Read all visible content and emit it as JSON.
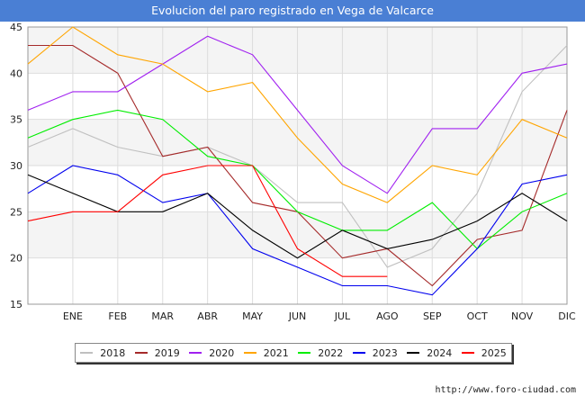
{
  "chart_data": {
    "type": "line",
    "title": "Evolucion del paro registrado en Vega de Valcarce",
    "categories": [
      "",
      "ENE",
      "FEB",
      "MAR",
      "ABR",
      "MAY",
      "JUN",
      "JUL",
      "AGO",
      "SEP",
      "OCT",
      "NOV",
      "DIC"
    ],
    "ylim": [
      15,
      45
    ],
    "yticks": [
      15,
      20,
      25,
      30,
      35,
      40,
      45
    ],
    "grid": true,
    "legend_position": "bottom",
    "series": [
      {
        "name": "2018",
        "color": "#c0c0c0",
        "values": [
          32,
          34,
          32,
          31,
          32,
          30,
          26,
          26,
          19,
          21,
          27,
          38,
          43
        ]
      },
      {
        "name": "2019",
        "color": "#a52a2a",
        "values": [
          43,
          43,
          40,
          31,
          32,
          26,
          25,
          20,
          21,
          17,
          22,
          23,
          36
        ]
      },
      {
        "name": "2020",
        "color": "#a020f0",
        "values": [
          36,
          38,
          38,
          41,
          44,
          42,
          36,
          30,
          27,
          34,
          34,
          40,
          41
        ]
      },
      {
        "name": "2021",
        "color": "#ffa500",
        "values": [
          41,
          45,
          42,
          41,
          38,
          39,
          33,
          28,
          26,
          30,
          29,
          35,
          33
        ]
      },
      {
        "name": "2022",
        "color": "#00ee00",
        "values": [
          33,
          35,
          36,
          35,
          31,
          30,
          25,
          23,
          23,
          26,
          21,
          25,
          27
        ]
      },
      {
        "name": "2023",
        "color": "#0000ee",
        "values": [
          27,
          30,
          29,
          26,
          27,
          21,
          19,
          17,
          17,
          16,
          21,
          28,
          29
        ]
      },
      {
        "name": "2024",
        "color": "#000000",
        "values": [
          29,
          27,
          25,
          25,
          27,
          23,
          20,
          23,
          21,
          22,
          24,
          27,
          24
        ]
      },
      {
        "name": "2025",
        "color": "#ff0000",
        "values": [
          24,
          25,
          25,
          29,
          30,
          30,
          21,
          18,
          18,
          null,
          null,
          null,
          null
        ]
      }
    ]
  },
  "footer": {
    "source_url": "http://www.foro-ciudad.com"
  }
}
